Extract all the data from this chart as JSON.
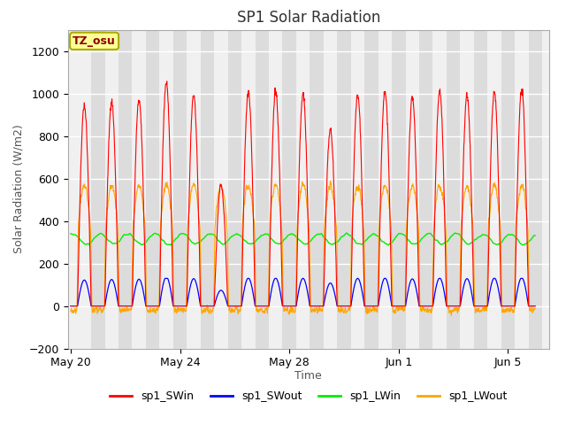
{
  "title": "SP1 Solar Radiation",
  "xlabel": "Time",
  "ylabel": "Solar Radiation (W/m2)",
  "ylim": [
    -200,
    1300
  ],
  "yticks": [
    -200,
    0,
    200,
    400,
    600,
    800,
    1000,
    1200
  ],
  "xtick_labels": [
    "May 20",
    "May 24",
    "May 28",
    "Jun 1",
    "Jun 5"
  ],
  "xtick_positions": [
    0,
    4,
    8,
    12,
    16
  ],
  "color_SWin": "#FF0000",
  "color_SWout": "#0000FF",
  "color_LWin": "#00EE00",
  "color_LWout": "#FFA500",
  "legend_labels": [
    "sp1_SWin",
    "sp1_SWout",
    "sp1_LWin",
    "sp1_LWout"
  ],
  "tz_label": "TZ_osu",
  "bg_color": "#FFFFFF",
  "plot_bg_light": "#F0F0F0",
  "plot_bg_dark": "#DCDCDC",
  "grid_color": "#FFFFFF",
  "n_days": 17,
  "dt_hours": 0.25,
  "peak_vals": [
    940,
    960,
    970,
    1050,
    990,
    570,
    1010,
    1010,
    1000,
    830,
    1000,
    1010,
    980,
    1010,
    990,
    1010,
    1020
  ]
}
